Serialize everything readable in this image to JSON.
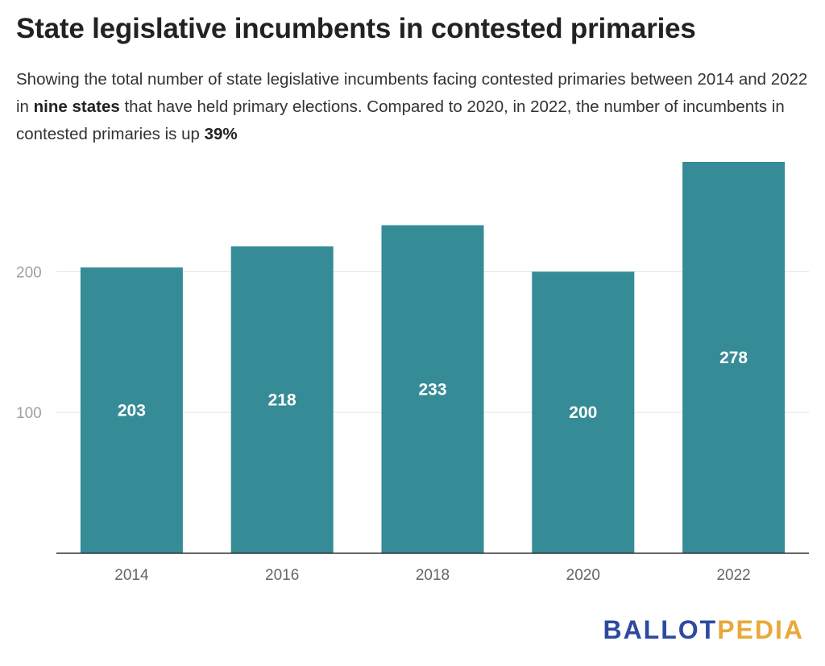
{
  "title": "State legislative incumbents in contested primaries",
  "subtitle": {
    "part1": "Showing the total number of state legislative incumbents facing contested primaries between 2014 and 2022 in ",
    "bold1": "nine states",
    "part2": " that have held primary elections. Compared to 2020, in 2022, the number of incumbents in contested primaries is up ",
    "bold2": "39%"
  },
  "logo": {
    "part1": "BALLOT",
    "part2": "PEDIA",
    "color1": "#2e4a9e",
    "color2": "#e8a93a"
  },
  "chart_data": {
    "type": "bar",
    "categories": [
      "2014",
      "2016",
      "2018",
      "2020",
      "2022"
    ],
    "values": [
      203,
      218,
      233,
      200,
      278
    ],
    "data_labels": [
      "203",
      "218",
      "233",
      "200",
      "278"
    ],
    "yticks": [
      100,
      200
    ],
    "ylim": [
      0,
      278
    ],
    "grid": true,
    "bar_color": "#358c97"
  }
}
